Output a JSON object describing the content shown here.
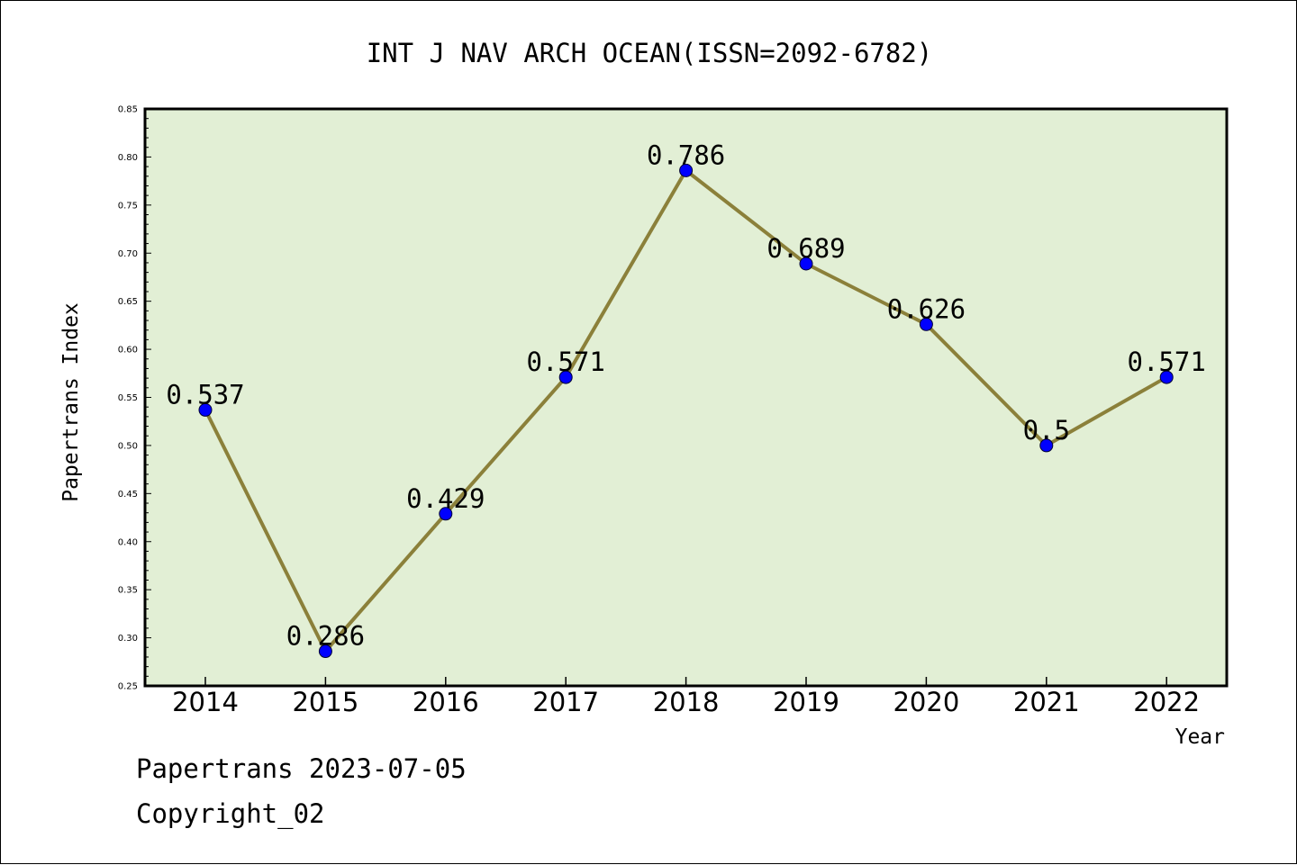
{
  "chart_data": {
    "type": "line",
    "title": "INT J NAV ARCH OCEAN(ISSN=2092-6782)",
    "xlabel": "Year",
    "ylabel": "Papertrans Index",
    "categories": [
      "2014",
      "2015",
      "2016",
      "2017",
      "2018",
      "2019",
      "2020",
      "2021",
      "2022"
    ],
    "series": [
      {
        "values": [
          0.537,
          0.286,
          0.429,
          0.571,
          0.786,
          0.689,
          0.626,
          0.5,
          0.571
        ],
        "labels": [
          "0.537",
          "0.286",
          "0.429",
          "0.571",
          "0.786",
          "0.689",
          "0.626",
          "0.5",
          "0.571"
        ],
        "line_color": "#8b803a",
        "marker_color": "#0000ff"
      }
    ],
    "ylim": [
      0.25,
      0.85
    ],
    "yticks": [
      0.25,
      0.3,
      0.35,
      0.4,
      0.45,
      0.5,
      0.55,
      0.6,
      0.65,
      0.7,
      0.75,
      0.8,
      0.85
    ],
    "ytick_labels": [
      "0.25",
      "0.30",
      "0.35",
      "0.40",
      "0.45",
      "0.50",
      "0.55",
      "0.60",
      "0.65",
      "0.70",
      "0.75",
      "0.80",
      "0.85"
    ],
    "grid": false,
    "plot_background": "#e2efd5"
  },
  "footer": {
    "line1": "Papertrans 2023-07-05",
    "line2": "Copyright_02"
  }
}
